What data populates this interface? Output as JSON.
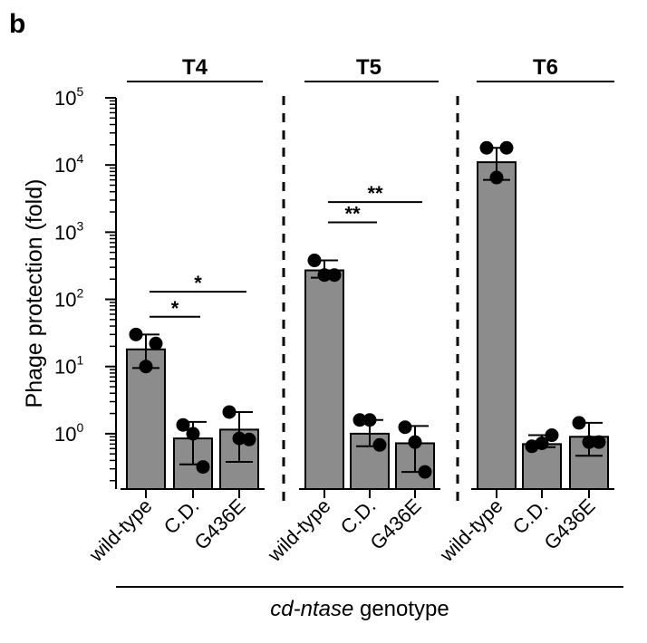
{
  "panel_label": "b",
  "chart_data": {
    "type": "bar",
    "yscale": "log",
    "ylim": [
      0.15,
      100000
    ],
    "ylabel": "Phage protection (fold)",
    "xlabel_italic": "cd-ntase",
    "xlabel_rest": " genotype",
    "yticks": [
      {
        "value": 1,
        "base": "10",
        "exp": "0"
      },
      {
        "value": 10,
        "base": "10",
        "exp": "1"
      },
      {
        "value": 100,
        "base": "10",
        "exp": "2"
      },
      {
        "value": 1000,
        "base": "10",
        "exp": "3"
      },
      {
        "value": 10000,
        "base": "10",
        "exp": "4"
      },
      {
        "value": 100000,
        "base": "10",
        "exp": "5"
      }
    ],
    "bar_color": "#8c8c8c",
    "groups": [
      {
        "title": "T4",
        "categories": [
          "wild-type",
          "C.D.",
          "G436E"
        ],
        "values": [
          18,
          0.85,
          1.15
        ],
        "err_low": [
          9.5,
          0.35,
          0.38
        ],
        "err_high": [
          30,
          1.5,
          2.1
        ],
        "points": [
          [
            30,
            22,
            10
          ],
          [
            1.35,
            0.32,
            1.0
          ],
          [
            2.1,
            0.82,
            0.85
          ]
        ],
        "significance": [
          {
            "from": 0,
            "to": 1,
            "label": "*",
            "y": 55
          },
          {
            "from": 0,
            "to": 2,
            "label": "*",
            "y": 130
          }
        ]
      },
      {
        "title": "T5",
        "categories": [
          "wild-type",
          "C.D.",
          "G436E"
        ],
        "values": [
          270,
          1.0,
          0.72
        ],
        "err_low": [
          210,
          0.65,
          0.27
        ],
        "err_high": [
          380,
          1.6,
          1.3
        ],
        "points": [
          [
            380,
            230,
            230
          ],
          [
            1.6,
            0.68,
            1.6
          ],
          [
            1.25,
            0.27,
            0.75
          ]
        ],
        "significance": [
          {
            "from": 0,
            "to": 1,
            "label": "**",
            "y": 1400
          },
          {
            "from": 0,
            "to": 2,
            "label": "**",
            "y": 2800
          }
        ]
      },
      {
        "title": "T6",
        "categories": [
          "wild-type",
          "C.D.",
          "G436E"
        ],
        "values": [
          11000,
          0.7,
          0.9
        ],
        "err_low": [
          6000,
          0.63,
          0.47
        ],
        "err_high": [
          18000,
          0.95,
          1.45
        ],
        "points": [
          [
            18000,
            18000,
            6500
          ],
          [
            0.65,
            0.95,
            0.72
          ],
          [
            1.45,
            0.75,
            0.75
          ]
        ],
        "significance": []
      }
    ]
  }
}
